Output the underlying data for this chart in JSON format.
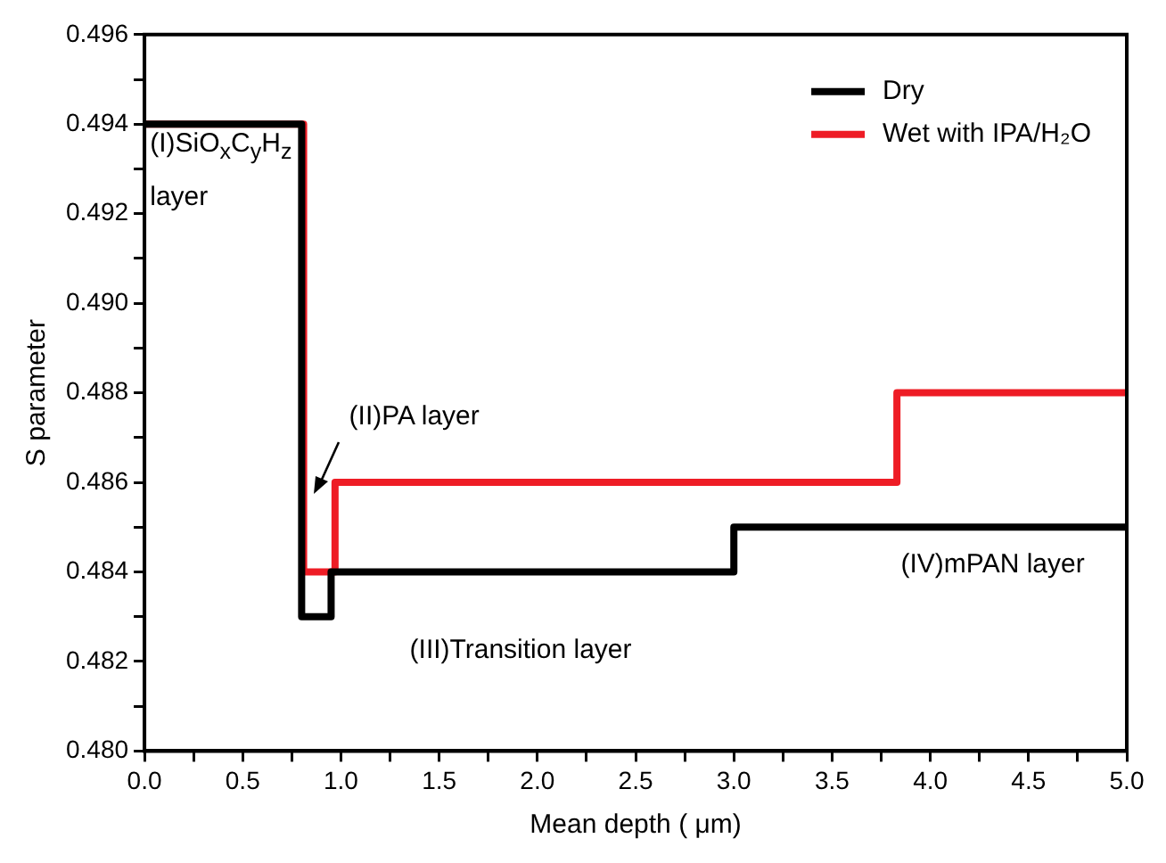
{
  "chart_data": {
    "type": "step",
    "xlabel": "Mean depth ( μm)",
    "ylabel": "S parameter",
    "xlim": [
      0,
      5
    ],
    "ylim": [
      0.48,
      0.496
    ],
    "xticks": [
      {
        "value": 0,
        "label": "0.0"
      },
      {
        "value": 0.25,
        "label": null
      },
      0.5,
      {
        "value": 0.75,
        "label": null
      },
      {
        "value": 1,
        "label": "1.0"
      },
      {
        "value": 1.25,
        "label": null
      },
      1.5,
      {
        "value": 1.75,
        "label": null
      },
      {
        "value": 2,
        "label": "2.0"
      },
      {
        "value": 2.25,
        "label": null
      },
      2.5,
      {
        "value": 2.75,
        "label": null
      },
      {
        "value": 3,
        "label": "3.0"
      },
      {
        "value": 3.25,
        "label": null
      },
      3.5,
      {
        "value": 3.75,
        "label": null
      },
      {
        "value": 4,
        "label": "4.0"
      },
      {
        "value": 4.25,
        "label": null
      },
      4.5,
      {
        "value": 4.75,
        "label": null
      },
      {
        "value": 5,
        "label": "5.0"
      }
    ],
    "yticks": [
      {
        "value": 0.48,
        "label": "0.480"
      },
      {
        "value": 0.481,
        "label": null
      },
      0.482,
      {
        "value": 0.483,
        "label": null
      },
      0.484,
      {
        "value": 0.485,
        "label": null
      },
      0.486,
      {
        "value": 0.487,
        "label": null
      },
      0.488,
      {
        "value": 0.489,
        "label": null
      },
      {
        "value": 0.49,
        "label": "0.490"
      },
      {
        "value": 0.491,
        "label": null
      },
      0.492,
      {
        "value": 0.493,
        "label": null
      },
      0.494,
      {
        "value": 0.495,
        "label": null
      },
      0.496
    ],
    "series": [
      {
        "name": "Dry",
        "color": "#000000",
        "x": [
          0,
          0.8,
          0.95,
          3.0,
          5.0
        ],
        "values": [
          0.494,
          0.483,
          0.484,
          0.485,
          0.485
        ]
      },
      {
        "name": "Wet with IPA/H₂O",
        "color": "#ee1c25",
        "x": [
          0,
          0.81,
          0.97,
          3.83,
          5.0
        ],
        "values": [
          0.494,
          0.484,
          0.486,
          0.488,
          0.488
        ]
      }
    ],
    "annotations": [
      "(I)SiO$_{x}$C$_{y}$H$_{z}$ layer",
      {
        "text": "(II)PA layer",
        "x": 0.86,
        "y": 0.4858
      },
      "(III)Transition layer",
      "(IV)mPAN layer"
    ],
    "grid": false,
    "legend": "top right",
    "line_style": "solid",
    "marker": "none"
  }
}
